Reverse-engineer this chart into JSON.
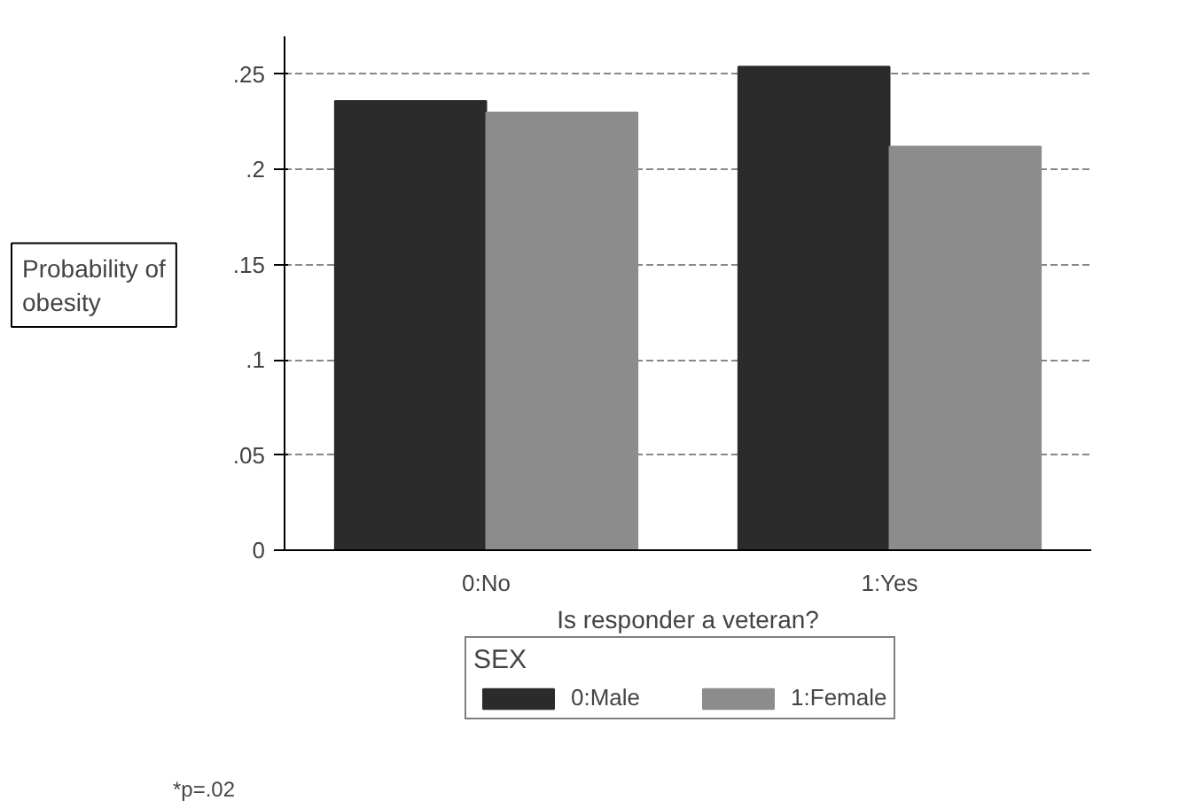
{
  "chart_data": {
    "type": "bar",
    "xlabel": "Is responder a veteran?",
    "ylabel": "Probability of obesity",
    "legend_title": "SEX",
    "categories": [
      "0:No",
      "1:Yes"
    ],
    "series": [
      {
        "name": "0:Male",
        "color": "#2b2b2b",
        "values": [
          0.236,
          0.254
        ]
      },
      {
        "name": "1:Female",
        "color": "#8c8c8c",
        "values": [
          0.23,
          0.212
        ]
      }
    ],
    "ylim": [
      0,
      0.27
    ],
    "yticks": [
      {
        "value": 0,
        "label": "0"
      },
      {
        "value": 0.05,
        "label": ".05"
      },
      {
        "value": 0.1,
        "label": ".1"
      },
      {
        "value": 0.15,
        "label": ".15"
      },
      {
        "value": 0.2,
        "label": ".2"
      },
      {
        "value": 0.25,
        "label": ".25"
      }
    ],
    "grid": "y",
    "legend": "bottom",
    "annotations": [
      "*p=.02"
    ]
  }
}
